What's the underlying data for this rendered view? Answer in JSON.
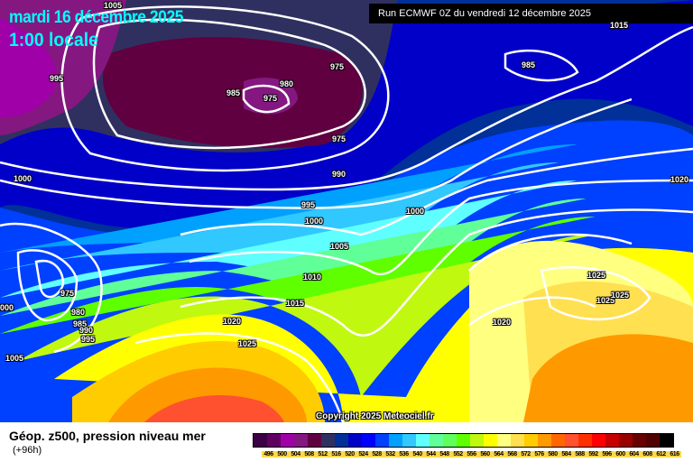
{
  "header": {
    "date": "mardi 16 décembre 2025",
    "time": "1:00 locale",
    "run": "Run ECMWF 0Z du vendredi 12 décembre 2025"
  },
  "copyright": "Copyright 2025 Meteociel.fr",
  "legend": {
    "title": "Géop. z500, pression niveau mer",
    "subtitle": "(+96h)",
    "values": [
      "496",
      "500",
      "504",
      "508",
      "512",
      "516",
      "520",
      "524",
      "528",
      "532",
      "536",
      "540",
      "544",
      "548",
      "552",
      "556",
      "560",
      "564",
      "568",
      "572",
      "576",
      "580",
      "584",
      "588",
      "592",
      "596",
      "600",
      "604",
      "608",
      "612",
      "616"
    ],
    "colors": [
      "#3c0044",
      "#600060",
      "#a000a8",
      "#841880",
      "#600040",
      "#303060",
      "#003098",
      "#0000c8",
      "#0000ff",
      "#0040ff",
      "#00a0ff",
      "#30c8ff",
      "#60ffff",
      "#60ff98",
      "#60ff60",
      "#60ff00",
      "#c0f810",
      "#ffff00",
      "#ffff80",
      "#ffe050",
      "#ffcc00",
      "#ff9900",
      "#ff6600",
      "#ff5030",
      "#ff3000",
      "#ff0000",
      "#c80000",
      "#980000",
      "#680000",
      "#500000",
      "#000000"
    ]
  },
  "isobars": [
    "1005",
    "995",
    "975",
    "980",
    "985",
    "975",
    "975",
    "985",
    "1015",
    "1000",
    "990",
    "995",
    "1000",
    "1000",
    "1005",
    "1010",
    "1020",
    "975",
    "980",
    "985",
    "990",
    "995",
    "000",
    "1005",
    "1015",
    "1020",
    "1025",
    "1020",
    "1025",
    "1025",
    "1025"
  ]
}
